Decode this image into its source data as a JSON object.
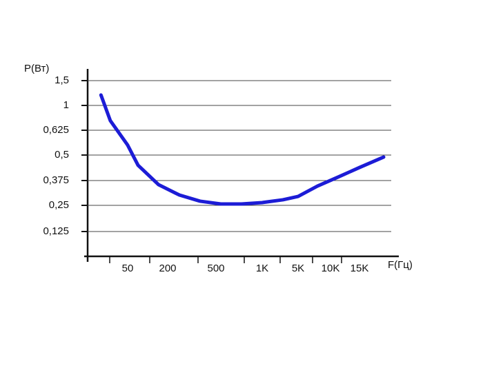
{
  "chart_data": {
    "type": "line",
    "y_label": "P(Вт)",
    "x_label": "F(Гц)",
    "x": [
      30,
      37,
      50,
      89,
      166,
      273,
      401,
      552,
      776,
      1000,
      3308,
      5000,
      7979,
      11310,
      15000,
      18070
    ],
    "series": [
      {
        "name": "P",
        "color": "#1c1cd6",
        "values": [
          1.21,
          0.77,
          0.55,
          0.45,
          0.354,
          0.302,
          0.271,
          0.257,
          0.257,
          0.264,
          0.278,
          0.295,
          0.347,
          0.392,
          0.439,
          0.49
        ]
      }
    ],
    "xlim": [
      20,
      20000
    ],
    "xticks": [
      50,
      200,
      500,
      {
        "value": 1000,
        "label": "1K"
      },
      {
        "value": 5000,
        "label": "5K"
      },
      {
        "value": 10000,
        "label": "10K"
      },
      {
        "value": 15000,
        "label": "15K"
      }
    ],
    "ylim": [
      0,
      1.5
    ],
    "yticks": [
      {
        "value": 0.125,
        "label": "0,125"
      },
      {
        "value": 0.25,
        "label": "0,25"
      },
      {
        "value": 0.375,
        "label": "0,375"
      },
      {
        "value": 0.5,
        "label": "0,5"
      },
      {
        "value": 0.625,
        "label": "0,625"
      },
      1,
      {
        "value": 1.5,
        "label": "1,5"
      }
    ],
    "grid": true
  }
}
